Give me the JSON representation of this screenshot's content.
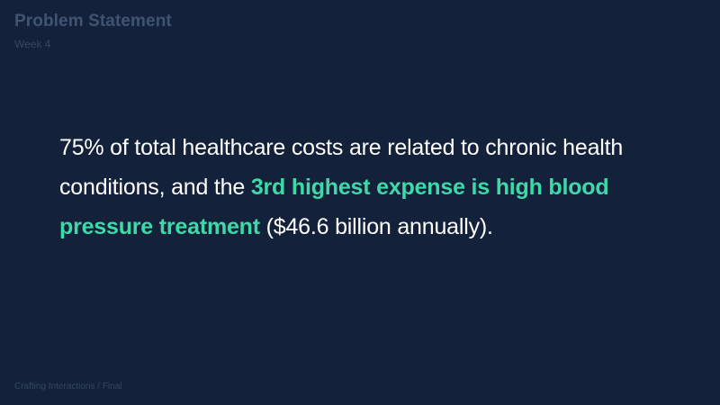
{
  "header": {
    "title": "Problem Statement",
    "subtitle": "Week 4"
  },
  "body": {
    "text_part1": "75% of total healthcare costs are related to chronic health conditions, and the ",
    "highlight": "3rd highest expense is high blood pressure treatment",
    "text_part2": " ($46.6 billion annually)."
  },
  "footer": {
    "text": "Crafting Interactions / Final"
  },
  "colors": {
    "background": "#13223a",
    "highlight": "#3fd9a9",
    "body_text": "#ffffff",
    "muted": "#3e5471"
  }
}
